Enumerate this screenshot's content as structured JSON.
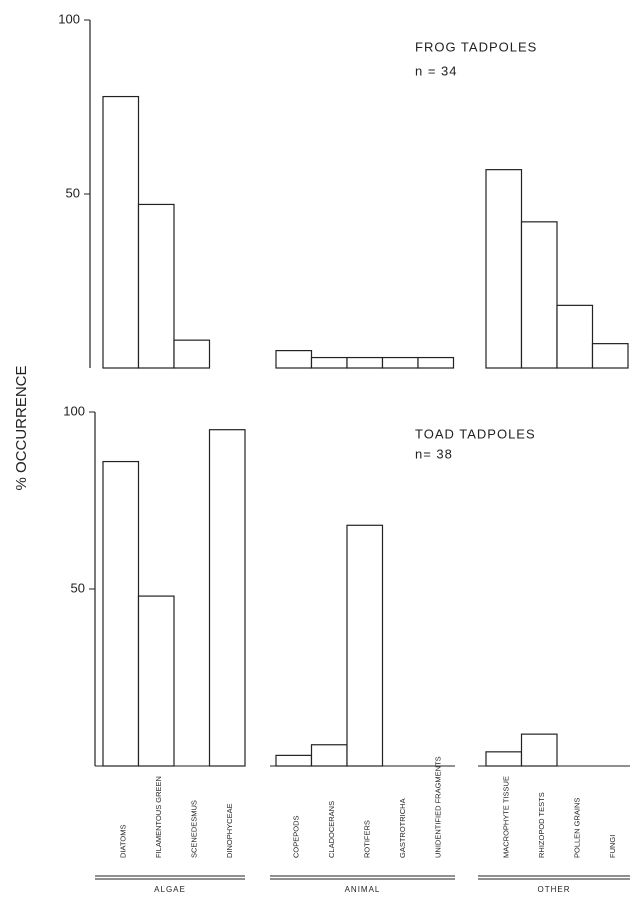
{
  "chart_data": [
    {
      "type": "bar",
      "title": "FROG TADPOLES",
      "subtitle": "n = 34",
      "ylabel": "% OCCURRENCE",
      "values": [
        78,
        47,
        8,
        0,
        5,
        3,
        3,
        3,
        3,
        57,
        42,
        18,
        7
      ],
      "color": "#ffffff",
      "ylim": [
        0,
        100
      ],
      "yticks": [
        50,
        100
      ]
    },
    {
      "type": "bar",
      "title": "TOAD TADPOLES",
      "subtitle": "n= 38",
      "categories": [
        "DIATOMS",
        "FILAMENTOUS GREEN",
        "SCENEDESMUS",
        "DINOPHYCEAE",
        "COPEPODS",
        "CLADOCERANS",
        "ROTIFERS",
        "GASTROTRICHA",
        "UNIDENTIFIED FRAGMENTS",
        "MACROPHYTE TISSUE",
        "RHIZOPOD TESTS",
        "POLLEN GRAINS",
        "FUNGI"
      ],
      "groups": [
        "ALGAE",
        "ANIMAL",
        "OTHER"
      ],
      "values": [
        86,
        48,
        0,
        95,
        3,
        6,
        68,
        0,
        0,
        4,
        9,
        0,
        0
      ],
      "color": "#ffffff",
      "ylim": [
        0,
        100
      ],
      "yticks": [
        50,
        100
      ]
    }
  ]
}
